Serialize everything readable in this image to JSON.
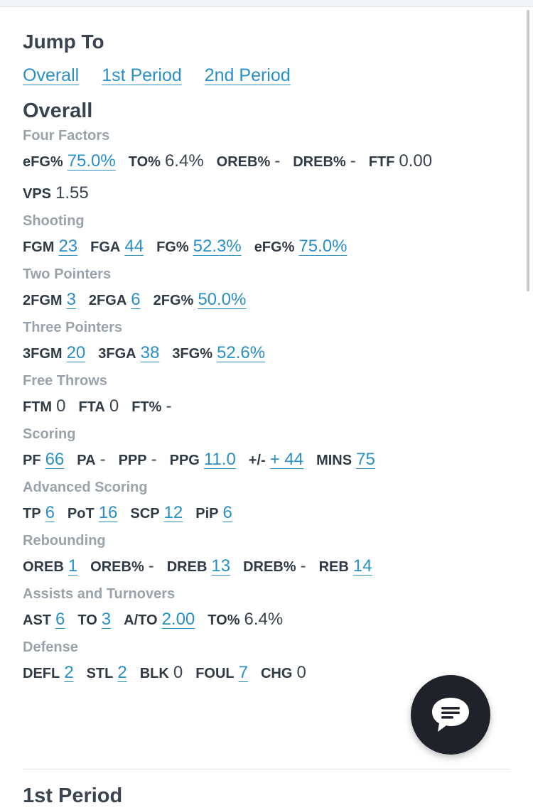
{
  "jump": {
    "title": "Jump To",
    "links": [
      "Overall",
      "1st Period",
      "2nd Period"
    ]
  },
  "section": {
    "title": "Overall",
    "groups": [
      {
        "title": "Four Factors",
        "rows": [
          [
            {
              "label": "eFG%",
              "value": "75.0%",
              "link": true
            },
            {
              "label": "TO%",
              "value": "6.4%",
              "link": false
            },
            {
              "label": "OREB%",
              "value": "-",
              "link": false
            },
            {
              "label": "DREB%",
              "value": "-",
              "link": false
            },
            {
              "label": "FTF",
              "value": "0.00",
              "link": false
            }
          ],
          [
            {
              "label": "VPS",
              "value": "1.55",
              "link": false
            }
          ]
        ]
      },
      {
        "title": "Shooting",
        "rows": [
          [
            {
              "label": "FGM",
              "value": "23",
              "link": true
            },
            {
              "label": "FGA",
              "value": "44",
              "link": true
            },
            {
              "label": "FG%",
              "value": "52.3%",
              "link": true
            },
            {
              "label": "eFG%",
              "value": "75.0%",
              "link": true
            }
          ]
        ]
      },
      {
        "title": "Two Pointers",
        "rows": [
          [
            {
              "label": "2FGM",
              "value": "3",
              "link": true
            },
            {
              "label": "2FGA",
              "value": "6",
              "link": true
            },
            {
              "label": "2FG%",
              "value": "50.0%",
              "link": true
            }
          ]
        ]
      },
      {
        "title": "Three Pointers",
        "rows": [
          [
            {
              "label": "3FGM",
              "value": "20",
              "link": true
            },
            {
              "label": "3FGA",
              "value": "38",
              "link": true
            },
            {
              "label": "3FG%",
              "value": "52.6%",
              "link": true
            }
          ]
        ]
      },
      {
        "title": "Free Throws",
        "rows": [
          [
            {
              "label": "FTM",
              "value": "0",
              "link": false
            },
            {
              "label": "FTA",
              "value": "0",
              "link": false
            },
            {
              "label": "FT%",
              "value": "-",
              "link": false
            }
          ]
        ]
      },
      {
        "title": "Scoring",
        "rows": [
          [
            {
              "label": "PF",
              "value": "66",
              "link": true
            },
            {
              "label": "PA",
              "value": "-",
              "link": false
            },
            {
              "label": "PPP",
              "value": "-",
              "link": false
            },
            {
              "label": "PPG",
              "value": "11.0",
              "link": true
            },
            {
              "label": "+/-",
              "value": "+ 44",
              "link": true
            },
            {
              "label": "MINS",
              "value": "75",
              "link": true
            }
          ]
        ]
      },
      {
        "title": "Advanced Scoring",
        "rows": [
          [
            {
              "label": "TP",
              "value": "6",
              "link": true
            },
            {
              "label": "PoT",
              "value": "16",
              "link": true
            },
            {
              "label": "SCP",
              "value": "12",
              "link": true
            },
            {
              "label": "PiP",
              "value": "6",
              "link": true
            }
          ]
        ]
      },
      {
        "title": "Rebounding",
        "rows": [
          [
            {
              "label": "OREB",
              "value": "1",
              "link": true
            },
            {
              "label": "OREB%",
              "value": "-",
              "link": false
            },
            {
              "label": "DREB",
              "value": "13",
              "link": true
            },
            {
              "label": "DREB%",
              "value": "-",
              "link": false
            },
            {
              "label": "REB",
              "value": "14",
              "link": true
            }
          ]
        ]
      },
      {
        "title": "Assists and Turnovers",
        "rows": [
          [
            {
              "label": "AST",
              "value": "6",
              "link": true
            },
            {
              "label": "TO",
              "value": "3",
              "link": true
            },
            {
              "label": "A/TO",
              "value": "2.00",
              "link": true
            },
            {
              "label": "TO%",
              "value": "6.4%",
              "link": false
            }
          ]
        ]
      },
      {
        "title": "Defense",
        "rows": [
          [
            {
              "label": "DEFL",
              "value": "2",
              "link": true
            },
            {
              "label": "STL",
              "value": "2",
              "link": true
            },
            {
              "label": "BLK",
              "value": "0",
              "link": false
            },
            {
              "label": "FOUL",
              "value": "7",
              "link": true
            },
            {
              "label": "CHG",
              "value": "0",
              "link": false
            }
          ]
        ]
      }
    ]
  },
  "next_section": {
    "title": "1st Period"
  },
  "chat": {
    "icon": "chat-bubble-icon"
  },
  "colors": {
    "link": "#2a8fc4",
    "label": "#2f3a45",
    "group_title": "#9aa3ab",
    "chat_bg": "#1f2329"
  }
}
